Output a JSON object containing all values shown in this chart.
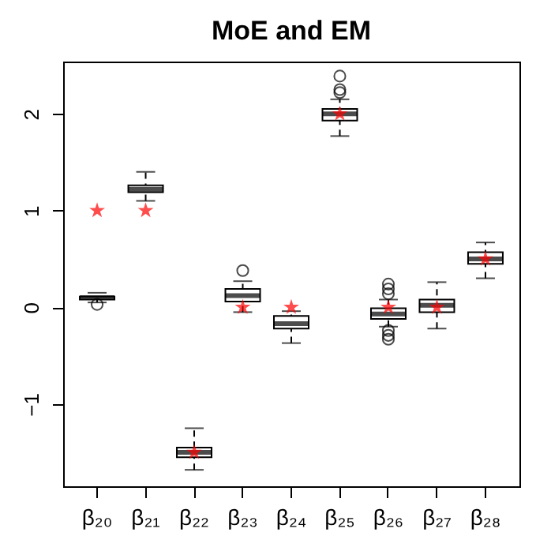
{
  "chart_data": {
    "type": "box",
    "title": "MoE and EM",
    "categories": [
      "β₂₀",
      "β₂₁",
      "β₂₂",
      "β₂₃",
      "β₂₄",
      "β₂₅",
      "β₂₆",
      "β₂₇",
      "β₂₈"
    ],
    "boxes": [
      {
        "low": 0.05,
        "q1": 0.08,
        "median": 0.1,
        "q3": 0.11,
        "high": 0.15,
        "outliers": [
          0.03
        ]
      },
      {
        "low": 1.1,
        "q1": 1.19,
        "median": 1.22,
        "q3": 1.26,
        "high": 1.4
      },
      {
        "low": -1.68,
        "q1": -1.55,
        "median": -1.5,
        "q3": -1.45,
        "high": -1.25
      },
      {
        "low": -0.05,
        "q1": 0.06,
        "median": 0.12,
        "q3": 0.19,
        "high": 0.27,
        "outliers": [
          0.38
        ]
      },
      {
        "low": -0.37,
        "q1": -0.22,
        "median": -0.17,
        "q3": -0.09,
        "high": -0.04
      },
      {
        "low": 1.77,
        "q1": 1.93,
        "median": 2.0,
        "q3": 2.05,
        "high": 2.15,
        "outliers": [
          2.22,
          2.25,
          2.39
        ]
      },
      {
        "low": -0.2,
        "q1": -0.12,
        "median": -0.07,
        "q3": -0.01,
        "high": 0.08,
        "outliers": [
          0.14,
          0.19,
          0.24,
          -0.24,
          -0.29,
          -0.33
        ]
      },
      {
        "low": -0.22,
        "q1": -0.05,
        "median": 0.02,
        "q3": 0.08,
        "high": 0.26
      },
      {
        "low": 0.3,
        "q1": 0.45,
        "median": 0.5,
        "q3": 0.57,
        "high": 0.67
      }
    ],
    "series": [
      {
        "type": "scatter",
        "color": "#ff0000",
        "x": [
          "β₂₀",
          "β₂₁",
          "β₂₂",
          "β₂₃",
          "β₂₄",
          "β₂₅",
          "β₂₆",
          "β₂₇",
          "β₂₈"
        ],
        "values": [
          1,
          1,
          -1.5,
          0,
          0,
          2,
          0,
          0,
          0.5
        ]
      }
    ],
    "marker": "star",
    "line_style": "dashed",
    "ylim": [
      -1.85,
      2.54
    ],
    "yticks": [
      -1,
      0,
      1,
      2
    ],
    "grid": false
  }
}
